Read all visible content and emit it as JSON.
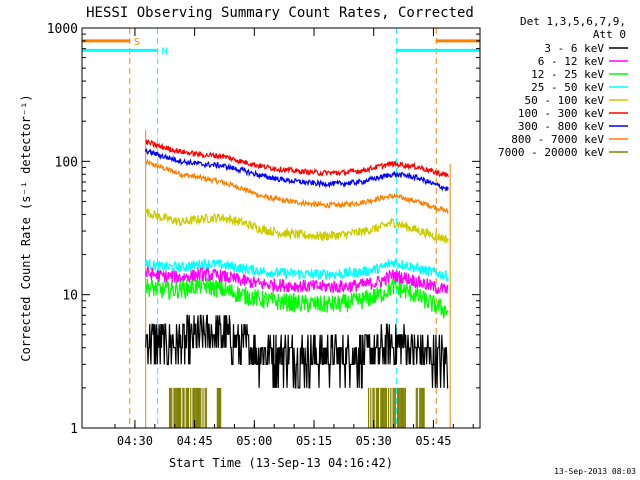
{
  "chart_data": {
    "type": "line",
    "title": "HESSI Observing Summary Count Rates, Corrected",
    "xlabel": "Start Time (13-Sep-13 04:16:42)",
    "ylabel": "Corrected Count Rate (s⁻¹ detector⁻¹)",
    "yscale": "log",
    "ylim": [
      1,
      1000
    ],
    "xlim_minutes": [
      0,
      100
    ],
    "x_tick_labels": [
      "04:30",
      "04:45",
      "05:00",
      "05:15",
      "05:30",
      "05:45"
    ],
    "x_tick_minutes": [
      13.3,
      28.3,
      43.3,
      58.3,
      73.3,
      88.3
    ],
    "y_tick_labels": [
      "1",
      "10",
      "100",
      "1000"
    ],
    "y_tick_values": [
      1,
      10,
      100,
      1000
    ],
    "data_range_minutes": [
      16.0,
      92.5
    ],
    "legend_header": [
      "Det 1,3,5,6,7,9,",
      "Att 0"
    ],
    "legend_position": "right",
    "flags": [
      {
        "label": "S",
        "color": "#ff7f00",
        "intervals_minutes": [
          [
            0,
            12
          ],
          [
            89,
            100
          ]
        ],
        "value": 800
      },
      {
        "label": "N",
        "color": "#00ffff",
        "intervals_minutes": [
          [
            0,
            19
          ],
          [
            79,
            100
          ]
        ],
        "value": 680
      }
    ],
    "series": [
      {
        "name": "3 - 6 keV",
        "color": "#000000",
        "noise": 0.18,
        "x": [
          16,
          20,
          25,
          30,
          35,
          40,
          45,
          50,
          55,
          60,
          65,
          70,
          75,
          78,
          82,
          85,
          88,
          92
        ],
        "y": [
          4.6,
          4.3,
          4.2,
          5.0,
          5.1,
          4.2,
          3.6,
          3.5,
          3.4,
          3.4,
          3.4,
          3.5,
          3.8,
          4.4,
          4.0,
          3.6,
          3.4,
          3.2
        ]
      },
      {
        "name": "6 - 12 keV",
        "color": "#ff00ff",
        "noise": 0.05,
        "x": [
          16,
          20,
          25,
          30,
          35,
          40,
          45,
          50,
          55,
          60,
          65,
          70,
          75,
          78,
          82,
          85,
          88,
          92
        ],
        "y": [
          14.5,
          13.8,
          13.5,
          14.2,
          13.8,
          12.8,
          12.0,
          11.8,
          11.6,
          11.5,
          11.5,
          11.8,
          12.5,
          14.0,
          13.2,
          12.3,
          11.5,
          10.8
        ]
      },
      {
        "name": "12 - 25 keV",
        "color": "#00ff00",
        "noise": 0.07,
        "x": [
          16,
          20,
          25,
          30,
          35,
          40,
          45,
          50,
          55,
          60,
          65,
          70,
          75,
          78,
          82,
          85,
          88,
          92
        ],
        "y": [
          11.5,
          10.8,
          11.0,
          11.8,
          11.0,
          10.0,
          9.2,
          8.8,
          8.6,
          8.4,
          8.5,
          9.0,
          10.0,
          11.5,
          10.5,
          9.5,
          8.5,
          7.5
        ]
      },
      {
        "name": "25 - 50 keV",
        "color": "#00ffff",
        "noise": 0.04,
        "x": [
          16,
          20,
          25,
          30,
          35,
          40,
          45,
          50,
          55,
          60,
          65,
          70,
          75,
          78,
          82,
          85,
          88,
          92
        ],
        "y": [
          17.0,
          16.2,
          16.0,
          17.0,
          16.8,
          15.8,
          15.0,
          14.5,
          14.3,
          14.2,
          14.3,
          14.8,
          15.8,
          17.5,
          16.5,
          15.5,
          14.8,
          13.8
        ]
      },
      {
        "name": "50 - 100 keV",
        "color": "#cccc00",
        "noise": 0.035,
        "x": [
          16,
          20,
          25,
          30,
          35,
          40,
          45,
          50,
          55,
          60,
          65,
          70,
          75,
          78,
          82,
          85,
          88,
          92
        ],
        "y": [
          42,
          38,
          35,
          37,
          38,
          35,
          31,
          29,
          28,
          27.5,
          28,
          29.5,
          32,
          35,
          32,
          30,
          28,
          26
        ]
      },
      {
        "name": "100 - 300 keV",
        "color": "#ff0000",
        "noise": 0.02,
        "x": [
          16,
          20,
          25,
          30,
          35,
          40,
          45,
          50,
          55,
          60,
          65,
          70,
          75,
          78,
          82,
          85,
          88,
          92
        ],
        "y": [
          140,
          128,
          118,
          112,
          110,
          100,
          92,
          87,
          84,
          82,
          82,
          85,
          92,
          96,
          93,
          90,
          84,
          78
        ]
      },
      {
        "name": "300 - 800 keV",
        "color": "#0000ff",
        "noise": 0.02,
        "x": [
          16,
          20,
          25,
          30,
          35,
          40,
          45,
          50,
          55,
          60,
          65,
          70,
          75,
          78,
          82,
          85,
          88,
          92
        ],
        "y": [
          120,
          110,
          100,
          95,
          93,
          86,
          78,
          73,
          70,
          68,
          68,
          70,
          76,
          80,
          78,
          74,
          68,
          62
        ]
      },
      {
        "name": "800 - 7000 keV",
        "color": "#ff7f00",
        "noise": 0.02,
        "x": [
          16,
          20,
          25,
          30,
          35,
          40,
          45,
          50,
          55,
          60,
          65,
          70,
          75,
          78,
          82,
          85,
          88,
          92
        ],
        "y": [
          98,
          90,
          80,
          75,
          70,
          63,
          55,
          51,
          49,
          47,
          47,
          49,
          53,
          55,
          52,
          49,
          46,
          42
        ]
      },
      {
        "name": "7000 - 20000 keV",
        "color": "#808000",
        "noise": 0,
        "x": [],
        "y": [],
        "bursts_minutes": [
          [
            22,
            32
          ],
          [
            34,
            35
          ],
          [
            72,
            82
          ],
          [
            84,
            86
          ]
        ],
        "burst_values": [
          1,
          2
        ]
      }
    ]
  },
  "footer_timestamp": "13-Sep-2013 08:03"
}
